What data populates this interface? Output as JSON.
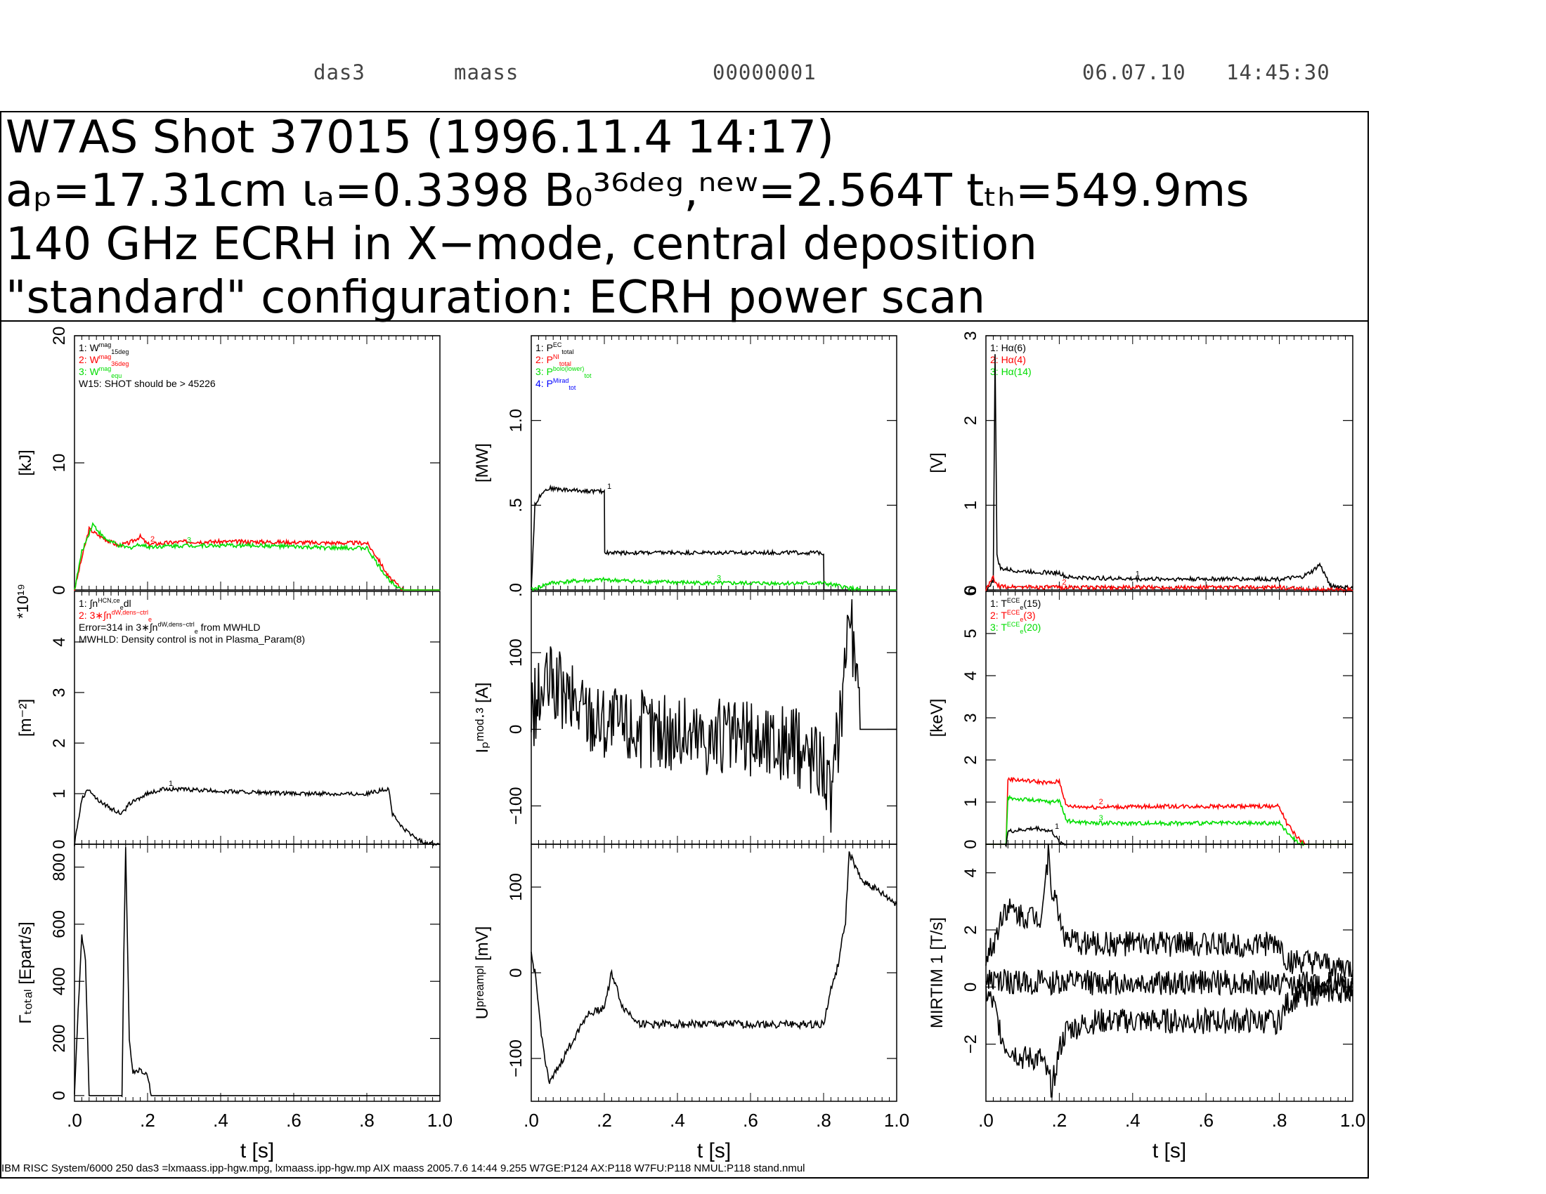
{
  "header": {
    "host": "das3",
    "user": "maass",
    "number": "00000001",
    "date": "06.07.10",
    "time": "14:45:30"
  },
  "title_lines": [
    "W7AS Shot 37015 (1996.11.4 14:17)",
    "aₚ=17.31cm ιₐ=0.3398 B₀³⁶ᵈᵉᵍ,ⁿᵉʷ=2.564T tₜₕ=549.9ms",
    "140 GHz ECRH in X−mode, central deposition",
    "\"standard\" configuration:  ECRH power scan"
  ],
  "footer": "IBM RISC System/6000 250 das3 =lxmaass.ipp-hgw.mpg, lxmaass.ipp-hgw.mp AIX maass 2005.7.6 14:44 9.255 W7GE:P124 AX:P118          W7FU:P118 NMUL:P118              stand.nmul",
  "colors": {
    "black": "#000000",
    "red": "#ff0000",
    "green": "#00dd00",
    "blue": "#0000ff"
  },
  "chart_data": [
    {
      "id": "energy",
      "type": "line",
      "ylabel": "[kJ]",
      "xlim": [
        0,
        1.0
      ],
      "ylim": [
        0,
        20
      ],
      "yticks": [
        0,
        10,
        20
      ],
      "ytick_labels": [
        "0",
        "10",
        "20"
      ],
      "legend": [
        {
          "text": "1: W",
          "sup": "mag",
          "sub": "15deg",
          "color": "black"
        },
        {
          "text": "2: W",
          "sup": "mag",
          "sub": "36deg",
          "color": "red"
        },
        {
          "text": "3: W",
          "sup": "mag",
          "sub": "equ",
          "color": "green"
        },
        {
          "text": "W15: SHOT should be > 45226",
          "color": "black"
        }
      ],
      "series": [
        {
          "color": "red",
          "label": "2",
          "x": [
            0.0,
            0.02,
            0.04,
            0.06,
            0.09,
            0.12,
            0.15,
            0.18,
            0.2,
            0.3,
            0.5,
            0.7,
            0.8,
            0.83,
            0.86,
            0.9,
            1.0
          ],
          "y": [
            0,
            2.5,
            4.8,
            4.4,
            3.9,
            3.5,
            3.7,
            4.2,
            3.6,
            3.8,
            3.8,
            3.7,
            3.7,
            2.5,
            1.0,
            0.0,
            0.0
          ]
        },
        {
          "color": "green",
          "label": "3",
          "x": [
            0.0,
            0.02,
            0.05,
            0.08,
            0.12,
            0.15,
            0.18,
            0.2,
            0.3,
            0.5,
            0.7,
            0.8,
            0.83,
            0.86,
            0.9,
            1.0
          ],
          "y": [
            0,
            3.0,
            5.2,
            4.1,
            3.5,
            3.3,
            3.6,
            3.4,
            3.5,
            3.5,
            3.3,
            3.3,
            2.0,
            0.8,
            0.0,
            0.0
          ]
        }
      ]
    },
    {
      "id": "power",
      "type": "line",
      "ylabel": "[MW]",
      "xlim": [
        0,
        1.0
      ],
      "ylim": [
        0,
        1.5
      ],
      "yticks": [
        0,
        0.5,
        1.0
      ],
      "ytick_labels": [
        ".0",
        ".5",
        "1.0"
      ],
      "legend": [
        {
          "text": "1: P",
          "sup": "EC",
          "sub": "total",
          "color": "black"
        },
        {
          "text": "2: P",
          "sup": "NI",
          "sub": "total",
          "color": "red"
        },
        {
          "text": "3: P",
          "sup": "bolo(lower)",
          "sub": "tot",
          "color": "green"
        },
        {
          "text": "4: P",
          "sup": "Mirad",
          "sub": "tot",
          "color": "blue"
        }
      ],
      "series": [
        {
          "color": "black",
          "label": "1",
          "x": [
            0.0,
            0.01,
            0.03,
            0.05,
            0.1,
            0.2,
            0.201,
            0.4,
            0.8,
            0.801,
            1.0
          ],
          "y": [
            0,
            0.5,
            0.58,
            0.6,
            0.59,
            0.58,
            0.22,
            0.22,
            0.22,
            0.0,
            0.0
          ]
        },
        {
          "color": "green",
          "label": "3",
          "x": [
            0.0,
            0.05,
            0.1,
            0.2,
            0.3,
            0.5,
            0.7,
            0.8,
            0.85,
            0.9,
            1.0
          ],
          "y": [
            0,
            0.04,
            0.05,
            0.06,
            0.05,
            0.04,
            0.04,
            0.04,
            0.02,
            0.0,
            0.0
          ]
        }
      ]
    },
    {
      "id": "halpha",
      "type": "line",
      "ylabel": "[V]",
      "xlim": [
        0,
        1.0
      ],
      "ylim": [
        0,
        3
      ],
      "yticks": [
        0,
        1,
        2,
        3
      ],
      "ytick_labels": [
        "0",
        "1",
        "2",
        "3"
      ],
      "legend": [
        {
          "text": "1: Hα(6)",
          "color": "black"
        },
        {
          "text": "2: Hα(4)",
          "color": "red"
        },
        {
          "text": "3: Hα(14)",
          "color": "green"
        }
      ],
      "series": [
        {
          "color": "black",
          "label": "1",
          "x": [
            0.0,
            0.02,
            0.025,
            0.03,
            0.04,
            0.1,
            0.2,
            0.22,
            0.4,
            0.6,
            0.8,
            0.86,
            0.89,
            0.91,
            0.94,
            1.0
          ],
          "y": [
            0,
            0.1,
            2.8,
            0.4,
            0.25,
            0.22,
            0.2,
            0.15,
            0.13,
            0.13,
            0.13,
            0.15,
            0.22,
            0.3,
            0.05,
            0.02
          ]
        },
        {
          "color": "red",
          "label": "2",
          "x": [
            0.0,
            0.02,
            0.03,
            0.05,
            0.2,
            0.8,
            0.85,
            1.0
          ],
          "y": [
            0,
            0.15,
            0.05,
            0.04,
            0.03,
            0.03,
            0.01,
            0.0
          ]
        }
      ]
    },
    {
      "id": "density",
      "type": "line",
      "ylabel": "[m⁻²]",
      "scale_label": "*10¹⁹",
      "xlim": [
        0,
        1.0
      ],
      "ylim": [
        0,
        5
      ],
      "yticks": [
        0,
        1,
        2,
        3,
        4
      ],
      "ytick_labels": [
        "0",
        "1",
        "2",
        "3",
        "4"
      ],
      "legend": [
        {
          "text": "1: ∫n",
          "sup": "HCN,ce",
          "sub": "e",
          "tail": "dl",
          "color": "black"
        },
        {
          "text": "2: 3∗∫n",
          "sup": "dW,dens−ctrl",
          "sub": "e",
          "color": "red"
        },
        {
          "text": "Error=314 in 3∗∫n",
          "sup": "dW,dens−ctrl",
          "sub": "e",
          "tail": " from MWHLD",
          "color": "black"
        },
        {
          "text": "MWHLD: Density control is not in Plasma_Param(8)",
          "color": "black"
        }
      ],
      "series": [
        {
          "color": "black",
          "label": "1",
          "x": [
            0.0,
            0.02,
            0.04,
            0.06,
            0.1,
            0.13,
            0.15,
            0.2,
            0.25,
            0.4,
            0.6,
            0.8,
            0.86,
            0.87,
            0.9,
            0.95,
            1.0
          ],
          "y": [
            0,
            0.9,
            1.1,
            0.9,
            0.7,
            0.6,
            0.8,
            1.0,
            1.1,
            1.05,
            1.0,
            1.0,
            1.1,
            0.6,
            0.3,
            0.05,
            0.0
          ]
        }
      ]
    },
    {
      "id": "current",
      "type": "line",
      "ylabel": "Iₚᵐᵒᵈ·³ [A]",
      "xlim": [
        0,
        1.0
      ],
      "ylim": [
        -150,
        180
      ],
      "yticks": [
        -100,
        0,
        100
      ],
      "ytick_labels": [
        "−100",
        "0",
        "100"
      ],
      "series": [
        {
          "color": "black",
          "x": [
            0.0,
            0.05,
            0.1,
            0.2,
            0.3,
            0.5,
            0.7,
            0.8,
            0.82,
            0.85,
            0.87,
            0.9,
            1.0
          ],
          "y": [
            20,
            60,
            40,
            10,
            0,
            -10,
            -20,
            -40,
            -100,
            40,
            170,
            0,
            0
          ]
        }
      ]
    },
    {
      "id": "te",
      "type": "line",
      "ylabel": "[keV]",
      "xlim": [
        0,
        1.0
      ],
      "ylim": [
        0,
        6
      ],
      "yticks": [
        0,
        1,
        2,
        3,
        4,
        5,
        6
      ],
      "ytick_labels": [
        "0",
        "1",
        "2",
        "3",
        "4",
        "5",
        "6"
      ],
      "legend": [
        {
          "text": "1: T",
          "sup": "ECE",
          "sub": "e",
          "tail": "(15)",
          "color": "black"
        },
        {
          "text": "2: T",
          "sup": "ECE",
          "sub": "e",
          "tail": "(3)",
          "color": "red"
        },
        {
          "text": "3: T",
          "sup": "ECE",
          "sub": "e",
          "tail": "(20)",
          "color": "green"
        }
      ],
      "series": [
        {
          "color": "red",
          "label": "2",
          "x": [
            0.0,
            0.055,
            0.06,
            0.12,
            0.18,
            0.2,
            0.22,
            0.3,
            0.5,
            0.8,
            0.82,
            0.85,
            0.87,
            1.0
          ],
          "y": [
            0,
            0,
            1.55,
            1.5,
            1.45,
            1.5,
            0.9,
            0.88,
            0.9,
            0.9,
            0.5,
            0.15,
            0.0,
            0.0
          ]
        },
        {
          "color": "green",
          "label": "3",
          "x": [
            0.0,
            0.055,
            0.06,
            0.12,
            0.18,
            0.2,
            0.22,
            0.3,
            0.5,
            0.8,
            0.82,
            0.85,
            0.87,
            1.0
          ],
          "y": [
            0,
            0,
            1.1,
            1.05,
            1.0,
            1.05,
            0.55,
            0.5,
            0.5,
            0.5,
            0.3,
            0.05,
            0.0,
            0.0
          ]
        },
        {
          "color": "black",
          "label": "1",
          "x": [
            0.0,
            0.055,
            0.06,
            0.14,
            0.18,
            0.2,
            0.22,
            1.0
          ],
          "y": [
            0,
            0,
            0.3,
            0.38,
            0.3,
            0.05,
            0.0,
            0.0
          ]
        }
      ]
    },
    {
      "id": "gamma",
      "type": "line",
      "ylabel": "Γₜₒₜₐₗ [Epart/s]",
      "xlim": [
        0,
        1.0
      ],
      "ylim": [
        -20,
        880
      ],
      "yticks": [
        0,
        200,
        400,
        600,
        800
      ],
      "ytick_labels": [
        "0",
        "200",
        "400",
        "600",
        "800"
      ],
      "xticks": [
        0,
        0.2,
        0.4,
        0.6,
        0.8,
        1.0
      ],
      "xtick_labels": [
        ".0",
        ".2",
        ".4",
        ".6",
        ".8",
        "1.0"
      ],
      "xlabel": "t [s]",
      "series": [
        {
          "color": "black",
          "x": [
            0.0,
            0.01,
            0.02,
            0.03,
            0.04,
            0.05,
            0.13,
            0.135,
            0.14,
            0.15,
            0.16,
            0.18,
            0.2,
            0.21,
            0.22,
            1.0
          ],
          "y": [
            0,
            300,
            560,
            480,
            0,
            0,
            0,
            500,
            870,
            200,
            80,
            90,
            70,
            0,
            0,
            0
          ]
        }
      ]
    },
    {
      "id": "upreampl",
      "type": "line",
      "ylabel": "Uᵖʳᵉᵃᵐᵖˡ [mV]",
      "xlim": [
        0,
        1.0
      ],
      "ylim": [
        -150,
        150
      ],
      "yticks": [
        -100,
        0,
        100
      ],
      "ytick_labels": [
        "−100",
        "0",
        "100"
      ],
      "xticks": [
        0,
        0.2,
        0.4,
        0.6,
        0.8,
        1.0
      ],
      "xtick_labels": [
        ".0",
        ".2",
        ".4",
        ".6",
        ".8",
        "1.0"
      ],
      "xlabel": "t [s]",
      "series": [
        {
          "color": "black",
          "x": [
            0.0,
            0.01,
            0.03,
            0.05,
            0.1,
            0.15,
            0.2,
            0.22,
            0.25,
            0.3,
            0.5,
            0.7,
            0.8,
            0.82,
            0.84,
            0.86,
            0.87,
            0.9,
            1.0
          ],
          "y": [
            20,
            0,
            -80,
            -130,
            -90,
            -50,
            -40,
            0,
            -40,
            -60,
            -60,
            -60,
            -60,
            -20,
            10,
            60,
            140,
            110,
            80
          ]
        }
      ]
    },
    {
      "id": "mirtim",
      "type": "line",
      "ylabel": "MIRTIM 1 [T/s]",
      "xlim": [
        0,
        1.0
      ],
      "ylim": [
        -4,
        5
      ],
      "yticks": [
        -2,
        0,
        2,
        4
      ],
      "ytick_labels": [
        "−2",
        "0",
        "2",
        "4"
      ],
      "xticks": [
        0,
        0.2,
        0.4,
        0.6,
        0.8,
        1.0
      ],
      "xtick_labels": [
        ".0",
        ".2",
        ".4",
        ".6",
        ".8",
        "1.0"
      ],
      "xlabel": "t [s]",
      "series": [
        {
          "color": "black",
          "x": [
            0.0,
            0.02,
            0.05,
            0.1,
            0.15,
            0.17,
            0.18,
            0.2,
            0.22,
            0.3,
            0.5,
            0.7,
            0.8,
            0.82,
            0.9,
            1.0
          ],
          "y": [
            1.0,
            1.5,
            2.8,
            2.5,
            2.5,
            4.6,
            3.5,
            2.5,
            1.6,
            1.5,
            1.5,
            1.5,
            1.5,
            0.9,
            0.8,
            0.6
          ]
        },
        {
          "color": "black",
          "x": [
            0.0,
            0.1,
            0.2,
            0.4,
            0.6,
            0.8,
            0.9,
            1.0
          ],
          "y": [
            0.2,
            0.15,
            0.15,
            0.15,
            0.15,
            0.15,
            0.1,
            0.1
          ]
        },
        {
          "color": "black",
          "x": [
            0.0,
            0.02,
            0.05,
            0.1,
            0.15,
            0.18,
            0.2,
            0.22,
            0.3,
            0.5,
            0.7,
            0.8,
            0.82,
            0.85,
            0.9,
            1.0
          ],
          "y": [
            -0.2,
            -0.6,
            -2.0,
            -2.5,
            -2.5,
            -3.5,
            -2.2,
            -1.5,
            -1.2,
            -1.2,
            -1.2,
            -1.2,
            -0.6,
            -0.3,
            -0.2,
            -0.1
          ]
        }
      ]
    }
  ]
}
